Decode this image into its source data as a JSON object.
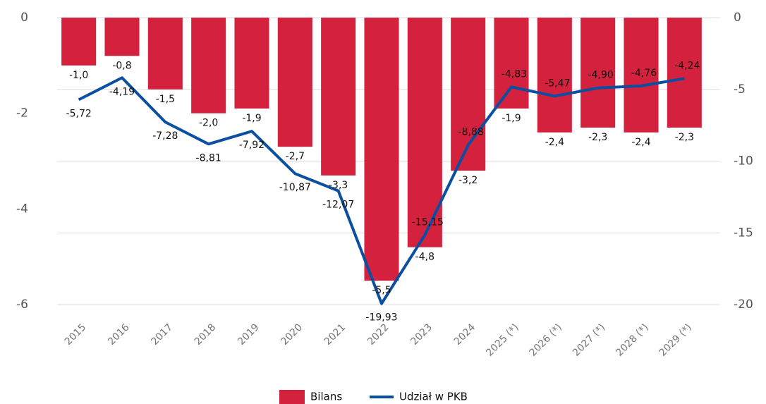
{
  "chart_data": {
    "type": "bar_line",
    "categories": [
      "2015",
      "2016",
      "2017",
      "2018",
      "2019",
      "2020",
      "2021",
      "2022",
      "2023",
      "2024",
      "2025 (*)",
      "2026 (*)",
      "2027 (*)",
      "2028 (*)",
      "2029 (*)"
    ],
    "series": [
      {
        "name": "Bilans",
        "type": "bar",
        "color": "#d4213d",
        "values": [
          -1.0,
          -0.8,
          -1.5,
          -2.0,
          -1.9,
          -2.7,
          -3.3,
          -5.5,
          -4.8,
          -3.2,
          -1.9,
          -2.4,
          -2.3,
          -2.4,
          -2.3
        ],
        "value_labels": [
          "-1,0",
          "-0,8",
          "-1,5",
          "-2,0",
          "-1,9",
          "-2,7",
          "-3,3",
          "-5,5",
          "-4,8",
          "-3,2",
          "-1,9",
          "-2,4",
          "-2,3",
          "-2,4",
          "-2,3"
        ]
      },
      {
        "name": "Udział w PKB",
        "type": "line",
        "axis": "y2",
        "color": "#0a4fa0",
        "values": [
          -5.72,
          -4.19,
          -7.28,
          -8.81,
          -7.92,
          -10.87,
          -12.07,
          -19.93,
          -15.15,
          -8.88,
          -4.83,
          -5.47,
          -4.9,
          -4.76,
          -4.24
        ],
        "value_labels": [
          "-5,72",
          "-4,19",
          "-7,28",
          "-8,81",
          "-7,92",
          "-10,87",
          "-12,07",
          "-19,93",
          "-15,15",
          "-8,88",
          "-4,83",
          "-5,47",
          "-4,90",
          "-4,76",
          "-4,24"
        ]
      }
    ],
    "ylim": [
      -6,
      0
    ],
    "yticks": [
      0,
      -2,
      -4,
      -6
    ],
    "y2lim": [
      -20,
      0
    ],
    "y2ticks": [
      0,
      -5,
      -10,
      -15,
      -20
    ],
    "grid": true,
    "legend": "bottom"
  }
}
